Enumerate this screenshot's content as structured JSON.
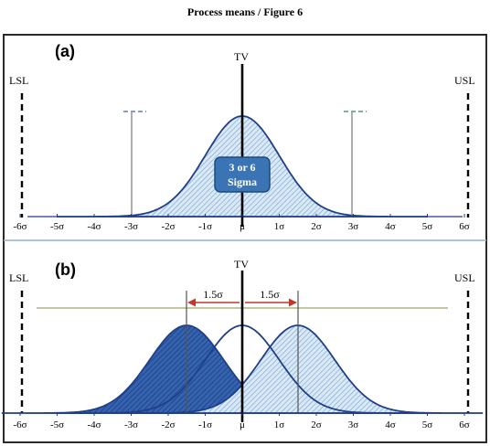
{
  "title": "Process means / Figure 6",
  "colors": {
    "frame": "#2a2a2a",
    "separator": "#8fb0cc",
    "curve": "#1f3f8a",
    "hatch_light": "#7aa8d6",
    "hatch_dark": "#2a5fae",
    "badge_fill": "#3a74b4",
    "badge_stroke": "#1e4a7e",
    "arrow": "#c0392b",
    "spec_line": "#000000"
  },
  "panel_a": {
    "label": "(a)",
    "tv_label": "TV",
    "lsl_label": "LSL",
    "usl_label": "USL",
    "badge_line1": "3 or 6",
    "badge_line2": "Sigma",
    "mean": 0,
    "sigma": 1,
    "markers_at": [
      -3,
      3
    ],
    "spec_limits": [
      -6,
      6
    ],
    "ticks": [
      "-6σ",
      "-5σ",
      "-4σ",
      "-3σ",
      "-2σ",
      "-1σ",
      "μ",
      "1σ",
      "2σ",
      "3σ",
      "4σ",
      "5σ",
      "6σ"
    ]
  },
  "panel_b": {
    "label": "(b)",
    "tv_label": "TV",
    "lsl_label": "LSL",
    "usl_label": "USL",
    "shift_left_label": "1.5σ",
    "shift_right_label": "1.5σ",
    "curve_means": [
      -1.5,
      0,
      1.5
    ],
    "sigma": 1,
    "spec_limits": [
      -6,
      6
    ],
    "ticks": [
      "-6σ",
      "-5σ",
      "-4σ",
      "-3σ",
      "-2σ",
      "-1σ",
      "μ",
      "1σ",
      "2σ",
      "3σ",
      "4σ",
      "5σ",
      "6σ"
    ]
  }
}
